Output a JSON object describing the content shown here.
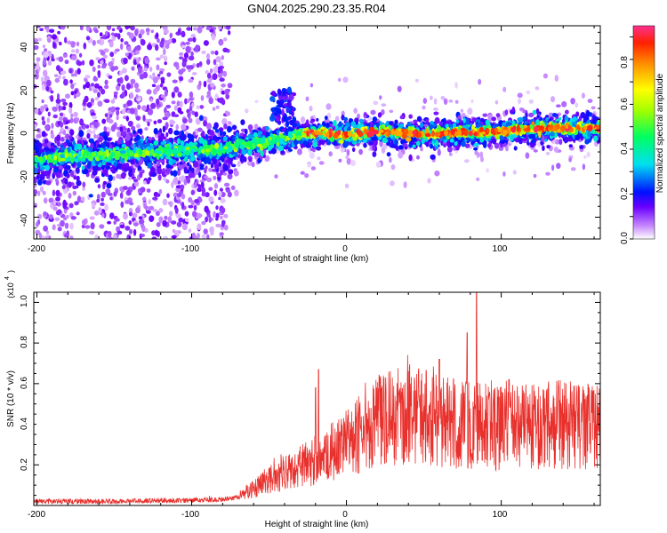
{
  "title": "GN04.2025.290.23.35.R04",
  "chart_data": [
    {
      "type": "heatmap",
      "xlabel": "Height of straight line (km)",
      "ylabel": "Frequency (Hz)",
      "xlim": [
        -202,
        164
      ],
      "ylim": [
        -50,
        48
      ],
      "x_ticks": [
        "-200",
        "-100",
        "0",
        "100"
      ],
      "y_ticks": [
        "40",
        "20",
        "0",
        "-20",
        "-40"
      ],
      "grid": false,
      "ridge": {
        "x": [
          -200,
          -180,
          -150,
          -120,
          -100,
          -90,
          -80,
          -70,
          -60,
          -50,
          -40,
          -30,
          -20,
          -10,
          0,
          10,
          30,
          50,
          70,
          90,
          110,
          130,
          150,
          164
        ],
        "freq": [
          -14,
          -12,
          -11,
          -10,
          -9,
          -9,
          -9,
          -7,
          -6,
          -5,
          -4,
          -2,
          -1,
          -2,
          -2,
          -1,
          -1,
          -2,
          -1,
          -1,
          0,
          1,
          1,
          1
        ]
      },
      "colorbar": {
        "label": "Normalized spectral amplitude",
        "ticks": [
          "0.0",
          "0.2",
          "0.4",
          "0.6",
          "0.8"
        ],
        "range": [
          0,
          0.95
        ]
      }
    },
    {
      "type": "line",
      "xlabel": "Height of straight line (km)",
      "ylabel": "SNR (10 * v/v)",
      "scale_note": "(x10",
      "scale_exp": "4",
      "xlim": [
        -202,
        164
      ],
      "ylim": [
        0,
        1.05
      ],
      "x_ticks": [
        "-200",
        "-100",
        "0",
        "100"
      ],
      "y_ticks": [
        "1.0",
        "0.8",
        "0.6",
        "0.4",
        "0.2"
      ],
      "color": "#e8302c",
      "envelope": {
        "x": [
          -202,
          -150,
          -100,
          -80,
          -70,
          -60,
          -50,
          -40,
          -30,
          -20,
          -10,
          0,
          10,
          20,
          30,
          40,
          50,
          60,
          80,
          100,
          120,
          140,
          164
        ],
        "y": [
          0.02,
          0.02,
          0.025,
          0.03,
          0.04,
          0.08,
          0.13,
          0.16,
          0.19,
          0.22,
          0.27,
          0.3,
          0.36,
          0.42,
          0.43,
          0.45,
          0.44,
          0.41,
          0.4,
          0.38,
          0.39,
          0.4,
          0.38
        ]
      },
      "peaks": [
        {
          "x": -18,
          "y": 0.67
        },
        {
          "x": -20,
          "y": 0.58
        },
        {
          "x": 60,
          "y": 0.72
        },
        {
          "x": 78,
          "y": 0.85
        },
        {
          "x": 84,
          "y": 1.05
        },
        {
          "x": 105,
          "y": 0.62
        }
      ]
    }
  ]
}
